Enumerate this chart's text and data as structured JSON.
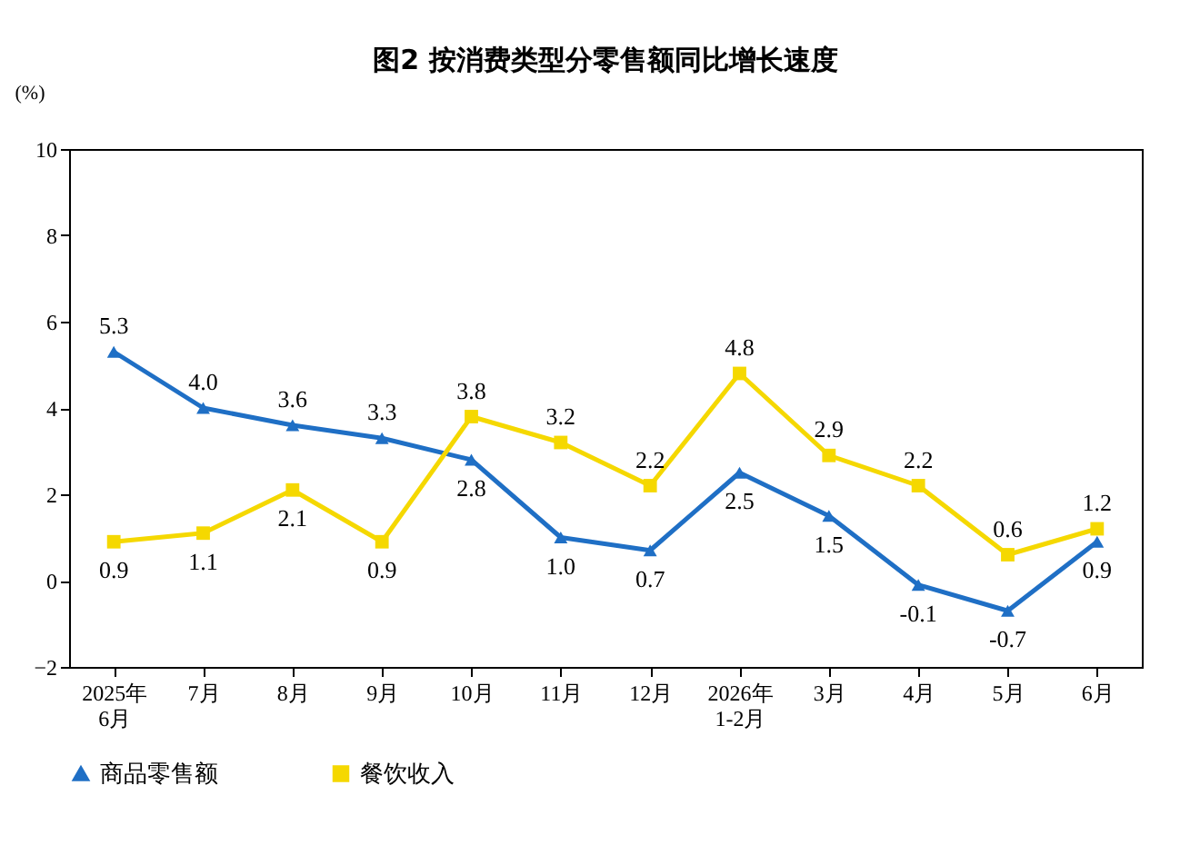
{
  "chart_data": {
    "type": "line",
    "title": "图2 按消费类型分零售额同比增长速度",
    "ylabel": "(%)",
    "categories": [
      "2025年\n6月",
      "7月",
      "8月",
      "9月",
      "10月",
      "11月",
      "12月",
      "2026年\n1-2月",
      "3月",
      "4月",
      "5月",
      "6月"
    ],
    "series": [
      {
        "name": "商品零售额",
        "color": "#1f6fc5",
        "marker": "triangle",
        "values": [
          5.3,
          4.0,
          3.6,
          3.3,
          2.8,
          1.0,
          0.7,
          2.5,
          1.5,
          -0.1,
          -0.7,
          0.9
        ],
        "value_labels": [
          "5.3",
          "4.0",
          "3.6",
          "3.3",
          "2.8",
          "1.0",
          "0.7",
          "2.5",
          "1.5",
          "-0.1",
          "-0.7",
          "0.9"
        ]
      },
      {
        "name": "餐饮收入",
        "color": "#f5d800",
        "marker": "square",
        "values": [
          0.9,
          1.1,
          2.1,
          0.9,
          3.8,
          3.2,
          2.2,
          4.8,
          2.9,
          2.2,
          0.6,
          1.2
        ],
        "value_labels": [
          "0.9",
          "1.1",
          "2.1",
          "0.9",
          "3.8",
          "3.2",
          "2.2",
          "4.8",
          "2.9",
          "2.2",
          "0.6",
          "1.2"
        ]
      }
    ],
    "ylim": [
      -2,
      10
    ],
    "yticks": [
      -2,
      0,
      2,
      4,
      6,
      8,
      10
    ],
    "grid": false,
    "legend": "bottom"
  }
}
